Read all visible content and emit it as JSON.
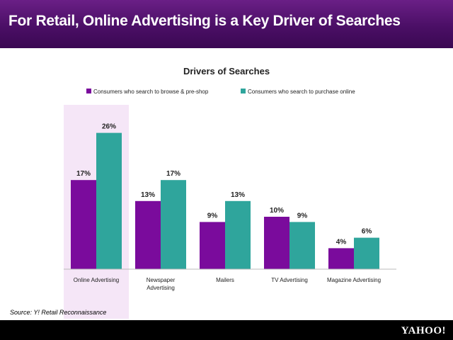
{
  "header": {
    "title": "For Retail, Online Advertising is a Key Driver of Searches"
  },
  "source": "Source: Y! Retail Reconnaissance",
  "footer": {
    "logo": "YAHOO!"
  },
  "colors": {
    "series1": "#7a0b9c",
    "series2": "#2fa59c",
    "highlight": "#f5e6f7"
  },
  "chart_data": {
    "type": "bar",
    "title": "Drivers of Searches",
    "categories": [
      "Online Advertising",
      "Newspaper Advertising",
      "Mailers",
      "TV Advertising",
      "Magazine  Advertising"
    ],
    "series": [
      {
        "name": "Consumers who search to browse & pre-shop",
        "values": [
          17,
          13,
          9,
          10,
          4
        ],
        "labels": [
          "17%",
          "13%",
          "9%",
          "10%",
          "4%"
        ]
      },
      {
        "name": "Consumers who search to purchase online",
        "values": [
          26,
          17,
          13,
          9,
          6
        ],
        "labels": [
          "26%",
          "17%",
          "13%",
          "9%",
          "6%"
        ]
      }
    ],
    "ylim": [
      0,
      30
    ],
    "legend": "top",
    "grid": false,
    "highlight_category": "Online Advertising"
  }
}
